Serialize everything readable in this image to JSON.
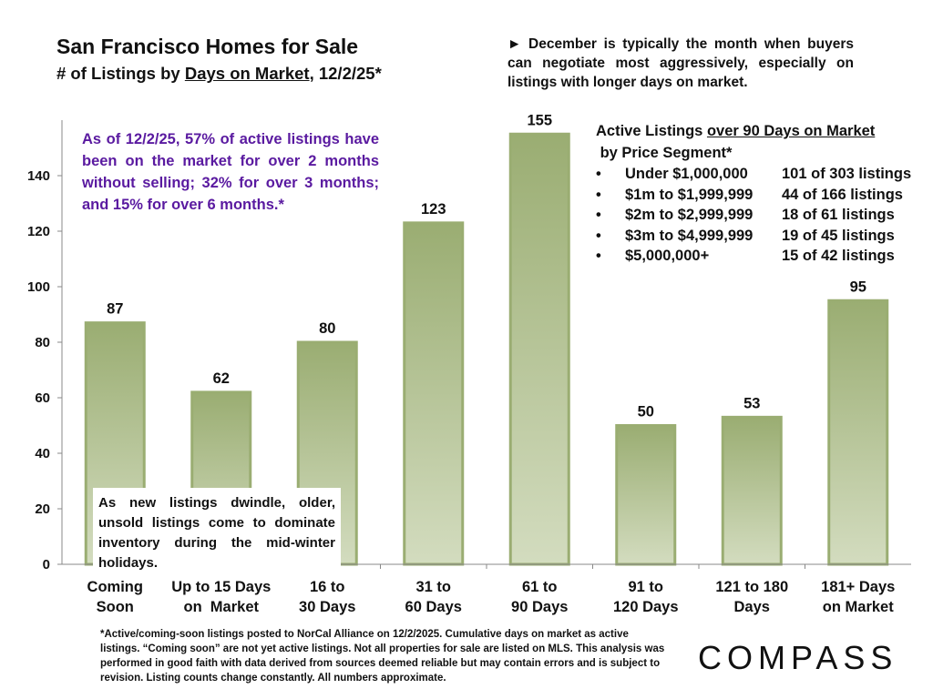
{
  "header": {
    "title": "San Francisco Homes for Sale",
    "subtitle_pre": "# of Listings by ",
    "subtitle_underlined": "Days on Market",
    "subtitle_post": ", 12/2/25*"
  },
  "note": "► December is typically the month when buyers can negotiate most aggressively, especially on listings with longer days on market.",
  "purple_callout": "As of 12/2/25, 57% of active listings have been on the market for over 2 months without selling; 32% for over 3 months; and 15% for over 6 months.*",
  "white_callout": "As new listings dwindle, older, unsold listings come to dominate inventory during the mid-winter holidays.",
  "segments": {
    "heading_underlined": "over 90 Days on Market",
    "heading_pre": "Active Listings ",
    "heading_line2": " by Price Segment*",
    "bullet": "•",
    "rows": [
      {
        "label": "Under $1,000,000",
        "value": "101 of 303 listings"
      },
      {
        "label": "$1m to $1,999,999",
        "value": "44 of 166 listings"
      },
      {
        "label": "$2m to $2,999,999",
        "value": "18 of 61 listings"
      },
      {
        "label": "$3m to $4,999,999",
        "value": "19 of 45 listings"
      },
      {
        "label": "$5,000,000+",
        "value": "15 of 42 listings"
      }
    ]
  },
  "footer": "*Active/coming-soon listings posted to NorCal Alliance on 12/2/2025. Cumulative days on market as active listings. “Coming soon” are not yet active listings. Not all properties for sale are listed on MLS. This analysis was performed in good faith with data derived from sources deemed reliable but may contain errors and is subject to revision. Listing counts change constantly. All numbers approximate.",
  "logo": "COMPASS",
  "chart_data": {
    "type": "bar",
    "categories": [
      "Coming Soon",
      "Up to 15 Days on  Market",
      "16 to 30 Days",
      "31 to 60 Days",
      "61 to 90 Days",
      "91 to 120 Days",
      "121 to 180 Days",
      "181+ Days on Market"
    ],
    "category_lines": [
      [
        "Coming",
        "Soon"
      ],
      [
        "Up to 15 Days",
        "on  Market"
      ],
      [
        "16 to",
        "30 Days"
      ],
      [
        "31 to",
        "60 Days"
      ],
      [
        "61 to",
        "90 Days"
      ],
      [
        "91 to",
        "120 Days"
      ],
      [
        "121 to 180",
        "Days"
      ],
      [
        "181+ Days",
        "on Market"
      ]
    ],
    "values": [
      87,
      62,
      80,
      123,
      155,
      50,
      53,
      95
    ],
    "yticks": [
      0,
      20,
      40,
      60,
      80,
      100,
      120,
      140
    ],
    "ylim": [
      0,
      160
    ],
    "grid": false,
    "bar_color": "#9aad72",
    "bar_color_light": "#d3dcbf"
  }
}
